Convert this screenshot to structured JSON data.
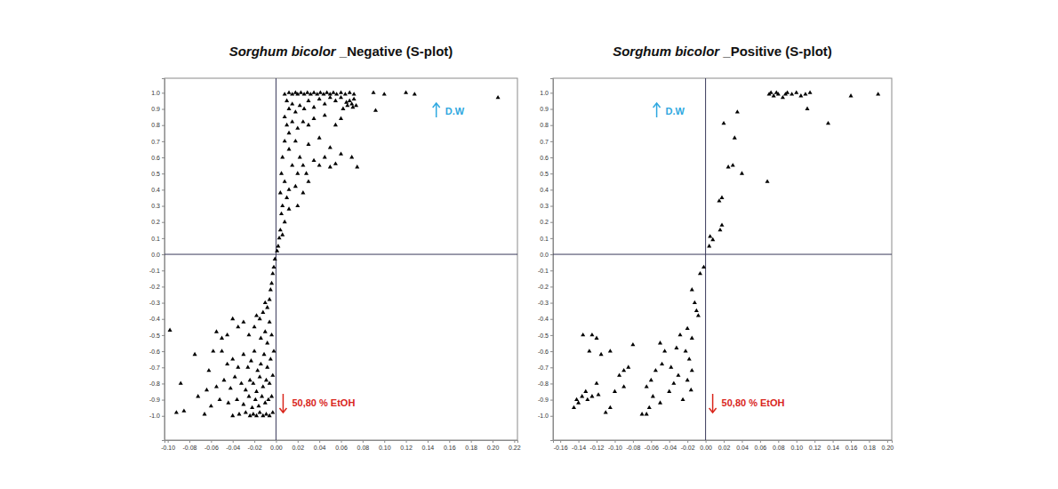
{
  "chart_data": [
    {
      "type": "scatter",
      "title": "Sorghum bicolor _Negative (S-plot)",
      "marker": "triangle",
      "color": "#000000",
      "xlim": [
        -0.103,
        0.223
      ],
      "ylim": [
        -1.15,
        1.09
      ],
      "xticks": [
        {
          "value": -0.1,
          "label": "-0.10"
        },
        -0.08,
        -0.06,
        -0.04,
        -0.02,
        {
          "value": 0,
          "label": "0.00"
        },
        0.02,
        0.04,
        0.06,
        0.08,
        {
          "value": 0.1,
          "label": "0.10"
        },
        0.12,
        0.14,
        0.16,
        0.18,
        {
          "value": 0.2,
          "label": "0.20"
        },
        0.22
      ],
      "yticks": [
        {
          "value": 1,
          "label": "1.0"
        },
        0.9,
        0.8,
        0.7,
        0.6,
        0.5,
        0.4,
        0.3,
        0.2,
        0.1,
        {
          "value": 0,
          "label": "0.0"
        },
        -0.1,
        -0.2,
        -0.3,
        -0.4,
        -0.5,
        -0.6,
        -0.7,
        -0.8,
        -0.9,
        {
          "value": -1,
          "label": "-1.0"
        }
      ],
      "annotations": [
        {
          "text": "D.W",
          "color": "#2fa8e0"
        },
        {
          "text": "50,80 % EtOH",
          "color": "#d9261c"
        }
      ],
      "x": [
        0.008,
        0.012,
        0.015,
        0.018,
        0.02,
        0.023,
        0.026,
        0.029,
        0.032,
        0.035,
        0.038,
        0.041,
        0.044,
        0.047,
        0.05,
        0.053,
        0.056,
        0.06,
        0.064,
        0.068,
        0.072,
        0.09,
        0.1,
        0.12,
        0.128,
        0.205,
        0.092,
        0.01,
        0.012,
        0.015,
        0.018,
        0.022,
        0.026,
        0.03,
        0.035,
        0.04,
        0.045,
        0.05,
        0.055,
        0.06,
        0.065,
        0.066,
        0.068,
        0.07,
        0.071,
        0.072,
        0.074,
        0.062,
        0.008,
        0.01,
        0.012,
        0.015,
        0.02,
        0.025,
        0.03,
        0.035,
        0.045,
        0.06,
        0.055,
        0.008,
        0.012,
        0.018,
        0.022,
        0.03,
        0.04,
        0.05,
        0.045,
        0.06,
        0.07,
        0.035,
        0.025,
        0.04,
        0.05,
        0.055,
        0.075,
        0.028,
        0.03,
        0.02,
        0.015,
        0.006,
        0.005,
        0.008,
        0.012,
        0.01,
        0.018,
        0.02,
        0.006,
        0.005,
        0.008,
        0.004,
        0.003,
        0.006,
        0.002,
        0.001,
        0.004,
        0.012,
        0.025,
        -0.001,
        -0.002,
        -0.003,
        -0.004,
        -0.005,
        -0.006,
        -0.008,
        -0.01,
        -0.012,
        -0.015,
        -0.018,
        -0.006,
        -0.004,
        -0.008,
        -0.01,
        -0.014,
        -0.02,
        -0.025,
        -0.03,
        -0.035,
        -0.04,
        -0.045,
        -0.05,
        -0.055,
        -0.002,
        -0.005,
        -0.008,
        -0.011,
        -0.014,
        -0.017,
        -0.02,
        -0.023,
        -0.026,
        -0.03,
        -0.035,
        -0.04,
        -0.045,
        -0.05,
        -0.003,
        -0.006,
        -0.009,
        -0.012,
        -0.015,
        -0.018,
        -0.021,
        -0.024,
        -0.028,
        -0.032,
        -0.038,
        -0.042,
        -0.048,
        -0.055,
        -0.004,
        -0.007,
        -0.01,
        -0.013,
        -0.016,
        -0.019,
        -0.022,
        -0.025,
        -0.03,
        -0.036,
        -0.044,
        -0.052,
        -0.06,
        -0.003,
        -0.006,
        -0.009,
        -0.012,
        -0.015,
        -0.018,
        -0.021,
        -0.024,
        -0.028,
        -0.034,
        -0.04,
        -0.098,
        -0.092,
        -0.088,
        -0.085,
        -0.075,
        -0.072,
        -0.066,
        -0.062,
        -0.058,
        -0.064
      ],
      "values": [
        0.99,
        1.0,
        0.99,
        1.0,
        0.99,
        1.0,
        0.99,
        1.0,
        0.99,
        1.0,
        0.99,
        1.0,
        0.99,
        1.0,
        0.99,
        1.0,
        0.99,
        1.0,
        0.99,
        1.0,
        0.99,
        1.0,
        0.99,
        1.0,
        0.99,
        0.97,
        0.89,
        0.95,
        0.9,
        0.93,
        0.88,
        0.92,
        0.9,
        0.95,
        0.91,
        0.96,
        0.93,
        0.97,
        0.95,
        0.97,
        0.94,
        0.92,
        0.95,
        0.93,
        0.91,
        0.96,
        0.92,
        0.9,
        0.85,
        0.8,
        0.75,
        0.82,
        0.78,
        0.82,
        0.8,
        0.84,
        0.86,
        0.84,
        0.8,
        0.7,
        0.65,
        0.7,
        0.6,
        0.68,
        0.72,
        0.66,
        0.6,
        0.62,
        0.6,
        0.58,
        0.55,
        0.55,
        0.54,
        0.56,
        0.54,
        0.5,
        0.45,
        0.5,
        0.55,
        0.6,
        0.5,
        0.45,
        0.4,
        0.35,
        0.42,
        0.3,
        0.3,
        0.25,
        0.2,
        0.15,
        0.1,
        0.12,
        0.05,
        0.02,
        0.38,
        0.28,
        0.38,
        -0.03,
        -0.08,
        -0.12,
        -0.18,
        -0.22,
        -0.28,
        -0.33,
        -0.3,
        -0.36,
        -0.4,
        -0.38,
        -0.42,
        -0.5,
        -0.55,
        -0.48,
        -0.52,
        -0.45,
        -0.5,
        -0.42,
        -0.45,
        -0.4,
        -0.5,
        -0.52,
        -0.48,
        -0.6,
        -0.65,
        -0.7,
        -0.62,
        -0.68,
        -0.72,
        -0.6,
        -0.66,
        -0.7,
        -0.62,
        -0.7,
        -0.65,
        -0.68,
        -0.6,
        -0.75,
        -0.8,
        -0.78,
        -0.82,
        -0.76,
        -0.85,
        -0.8,
        -0.78,
        -0.84,
        -0.8,
        -0.76,
        -0.83,
        -0.78,
        -0.82,
        -0.88,
        -0.9,
        -0.92,
        -0.88,
        -0.94,
        -0.9,
        -0.95,
        -0.88,
        -0.93,
        -0.9,
        -0.92,
        -0.9,
        -0.94,
        -0.98,
        -1.0,
        -0.99,
        -1.0,
        -0.98,
        -1.0,
        -0.99,
        -1.0,
        -0.98,
        -0.99,
        -1.0,
        -0.47,
        -0.98,
        -0.8,
        -0.97,
        -0.62,
        -0.88,
        -0.99,
        -0.72,
        -0.6,
        -0.84
      ]
    },
    {
      "type": "scatter",
      "title": "Sorghum bicolor _Positive (S-plot)",
      "marker": "triangle",
      "color": "#000000",
      "xlim": [
        -0.168,
        0.205
      ],
      "ylim": [
        -1.15,
        1.09
      ],
      "xticks": [
        -0.16,
        -0.14,
        -0.12,
        {
          "value": -0.1,
          "label": "-0.10"
        },
        -0.08,
        -0.06,
        -0.04,
        -0.02,
        {
          "value": 0,
          "label": "0.00"
        },
        0.02,
        0.04,
        0.06,
        0.08,
        {
          "value": 0.1,
          "label": "0.10"
        },
        0.12,
        0.14,
        0.16,
        0.18,
        {
          "value": 0.2,
          "label": "0.20"
        }
      ],
      "yticks": [
        {
          "value": 1,
          "label": "1.0"
        },
        0.9,
        0.8,
        0.7,
        0.6,
        0.5,
        0.4,
        0.3,
        0.2,
        0.1,
        {
          "value": 0,
          "label": "0.0"
        },
        -0.1,
        -0.2,
        -0.3,
        -0.4,
        -0.5,
        -0.6,
        -0.7,
        -0.8,
        -0.9,
        {
          "value": -1,
          "label": "-1.0"
        }
      ],
      "annotations": [
        {
          "text": "D.W",
          "color": "#2fa8e0"
        },
        {
          "text": "50,80 % EtOH",
          "color": "#d9261c"
        }
      ],
      "x": [
        0.07,
        0.072,
        0.075,
        0.078,
        0.08,
        0.085,
        0.088,
        0.09,
        0.095,
        0.1,
        0.105,
        0.11,
        0.115,
        0.112,
        0.135,
        0.16,
        0.19,
        0.068,
        0.035,
        0.032,
        0.04,
        0.02,
        0.025,
        0.03,
        0.018,
        0.015,
        0.018,
        0.016,
        0.008,
        0.005,
        0.004,
        -0.002,
        -0.006,
        -0.015,
        -0.012,
        -0.01,
        -0.008,
        -0.02,
        -0.015,
        -0.028,
        -0.032,
        -0.022,
        -0.018,
        -0.015,
        -0.02,
        -0.016,
        -0.025,
        -0.03,
        -0.038,
        -0.045,
        -0.05,
        -0.048,
        -0.055,
        -0.06,
        -0.065,
        -0.058,
        -0.05,
        -0.062,
        -0.065,
        -0.07,
        -0.04,
        -0.035,
        -0.08,
        -0.085,
        -0.09,
        -0.095,
        -0.09,
        -0.1,
        -0.105,
        -0.11,
        -0.105,
        -0.115,
        -0.12,
        -0.118,
        -0.125,
        -0.13,
        -0.12,
        -0.125,
        -0.135,
        -0.14,
        -0.145,
        -0.128,
        -0.132,
        -0.136,
        -0.142
      ],
      "values": [
        0.99,
        1.0,
        0.98,
        1.0,
        0.99,
        0.97,
        0.99,
        1.0,
        0.99,
        1.0,
        0.98,
        0.99,
        1.0,
        0.9,
        0.81,
        0.98,
        0.99,
        0.45,
        0.88,
        0.72,
        0.5,
        0.81,
        0.54,
        0.55,
        0.35,
        0.33,
        0.18,
        0.15,
        0.09,
        0.11,
        0.05,
        -0.08,
        -0.12,
        -0.22,
        -0.3,
        -0.35,
        -0.38,
        -0.46,
        -0.52,
        -0.5,
        -0.58,
        -0.6,
        -0.65,
        -0.72,
        -0.78,
        -0.84,
        -0.9,
        -0.75,
        -0.7,
        -0.6,
        -0.55,
        -0.68,
        -0.72,
        -0.78,
        -0.82,
        -0.88,
        -0.92,
        -0.95,
        -0.99,
        -0.99,
        -0.85,
        -0.8,
        -0.56,
        -0.7,
        -0.72,
        -0.75,
        -0.82,
        -0.85,
        -0.95,
        -0.98,
        -0.6,
        -0.62,
        -0.8,
        -0.87,
        -0.88,
        -0.9,
        -0.52,
        -0.5,
        -0.5,
        -0.92,
        -0.95,
        -0.6,
        -0.85,
        -0.88,
        -0.9
      ]
    }
  ]
}
